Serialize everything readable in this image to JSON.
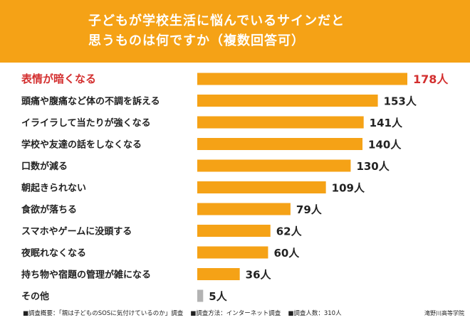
{
  "title": {
    "line1": "子どもが学校生活に悩んでいるサインだと",
    "line2": "思うものは何ですか（複数回答可）"
  },
  "colors": {
    "header_bg": "#f5a216",
    "bar": "#f5a216",
    "bar_other": "#b3b3b3",
    "highlight_text": "#d32f2f",
    "text": "#222222"
  },
  "chart_data": {
    "type": "bar",
    "orientation": "horizontal",
    "unit": "人",
    "categories": [
      "表情が暗くなる",
      "頭痛や腹痛など体の不調を訴える",
      "イライラして当たりが強くなる",
      "学校や友達の話をしなくなる",
      "口数が減る",
      "朝起きられない",
      "食欲が落ちる",
      "スマホやゲームに没頭する",
      "夜眠れなくなる",
      "持ち物や宿題の管理が雑になる",
      "その他"
    ],
    "values": [
      178,
      153,
      141,
      140,
      130,
      109,
      79,
      62,
      60,
      36,
      5
    ],
    "value_labels": [
      "178人",
      "153人",
      "141人",
      "140人",
      "130人",
      "109人",
      "79人",
      "62人",
      "60人",
      "36人",
      "5人"
    ],
    "highlight_index": 0,
    "other_index": 10,
    "grid": false
  },
  "footer": {
    "note1": "■調査概要：「親は子どものSOSに気付けているのか」調査",
    "note2": "■調査方法：インターネット調査",
    "note3": "■調査人数：310人",
    "institution": "滝野川高等学院"
  }
}
